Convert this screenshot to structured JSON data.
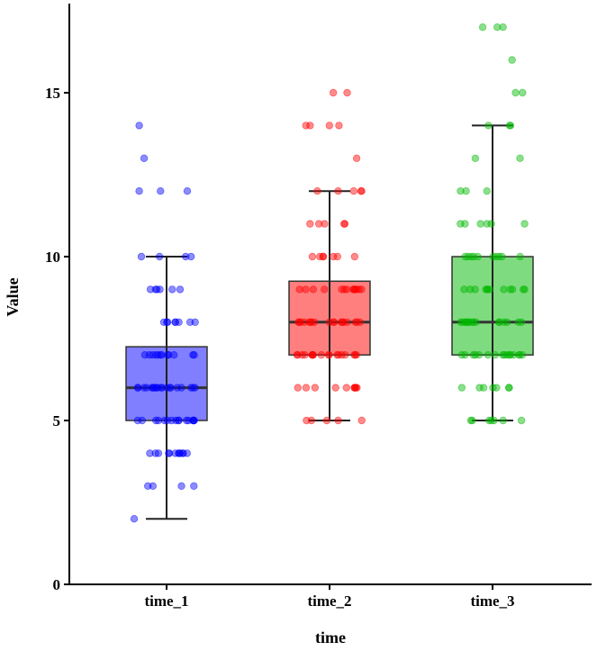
{
  "chart_data": {
    "type": "box",
    "title": "",
    "xlabel": "time",
    "ylabel": "Value",
    "ylim": [
      0,
      17.7
    ],
    "yticks": [
      "0",
      "5",
      "10",
      "15"
    ],
    "ytick_values": [
      0,
      5,
      10,
      15
    ],
    "categories": [
      "time_1",
      "time_2",
      "time_3"
    ],
    "colors": [
      "#0000ff",
      "#ff0000",
      "#00b800"
    ],
    "boxes": [
      {
        "name": "time_1",
        "whisker_low": 2,
        "q1": 5,
        "median": 6,
        "q3": 7.25,
        "whisker_high": 10
      },
      {
        "name": "time_2",
        "whisker_low": 5,
        "q1": 7,
        "median": 8,
        "q3": 9.25,
        "whisker_high": 12
      },
      {
        "name": "time_3",
        "whisker_low": 5,
        "q1": 7,
        "median": 8,
        "q3": 10,
        "whisker_high": 14
      }
    ],
    "point_counts": [
      {
        "14": 1,
        "13": 1,
        "12": 3,
        "10": 4,
        "9": 6,
        "8": 8,
        "7": 12,
        "6": 20,
        "5": 16,
        "4": 12,
        "3": 4,
        "2": 1
      },
      {
        "15": 2,
        "14": 4,
        "13": 1,
        "12": 5,
        "11": 5,
        "10": 7,
        "9": 14,
        "8": 18,
        "7": 18,
        "6": 10,
        "5": 5
      },
      {
        "17": 3,
        "16": 1,
        "15": 2,
        "14": 3,
        "13": 2,
        "12": 3,
        "11": 6,
        "10": 10,
        "9": 12,
        "8": 16,
        "7": 16,
        "6": 7,
        "5": 7
      }
    ]
  }
}
